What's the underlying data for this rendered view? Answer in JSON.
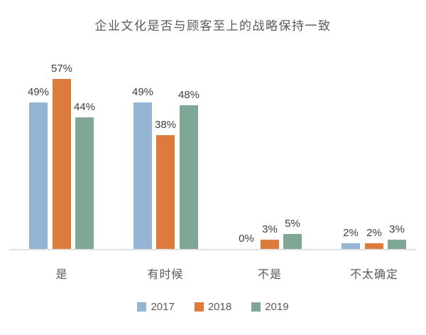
{
  "chart_data": {
    "type": "bar",
    "title": "企业文化是否与顾客至上的战略保持一致",
    "xlabel": "",
    "ylabel": "",
    "ylim": [
      0,
      60
    ],
    "grid": false,
    "legend_position": "bottom",
    "value_suffix": "%",
    "categories": [
      "是",
      "有时候",
      "不是",
      "不太确定"
    ],
    "series": [
      {
        "name": "2017",
        "color": "#96b4d3",
        "values": [
          49,
          49,
          0,
          2
        ],
        "labels": [
          "49%",
          "49%",
          "0%",
          "2%"
        ]
      },
      {
        "name": "2018",
        "color": "#dc7b3c",
        "values": [
          57,
          38,
          3,
          2
        ],
        "labels": [
          "57%",
          "38%",
          "3%",
          "2%"
        ]
      },
      {
        "name": "2019",
        "color": "#7fa795",
        "values": [
          44,
          48,
          5,
          3
        ],
        "labels": [
          "44%",
          "48%",
          "5%",
          "3%"
        ]
      }
    ],
    "colors": {
      "axis_line": "#e2e2e2",
      "title_text": "#595959",
      "value_text": "#3f3f3f"
    }
  }
}
